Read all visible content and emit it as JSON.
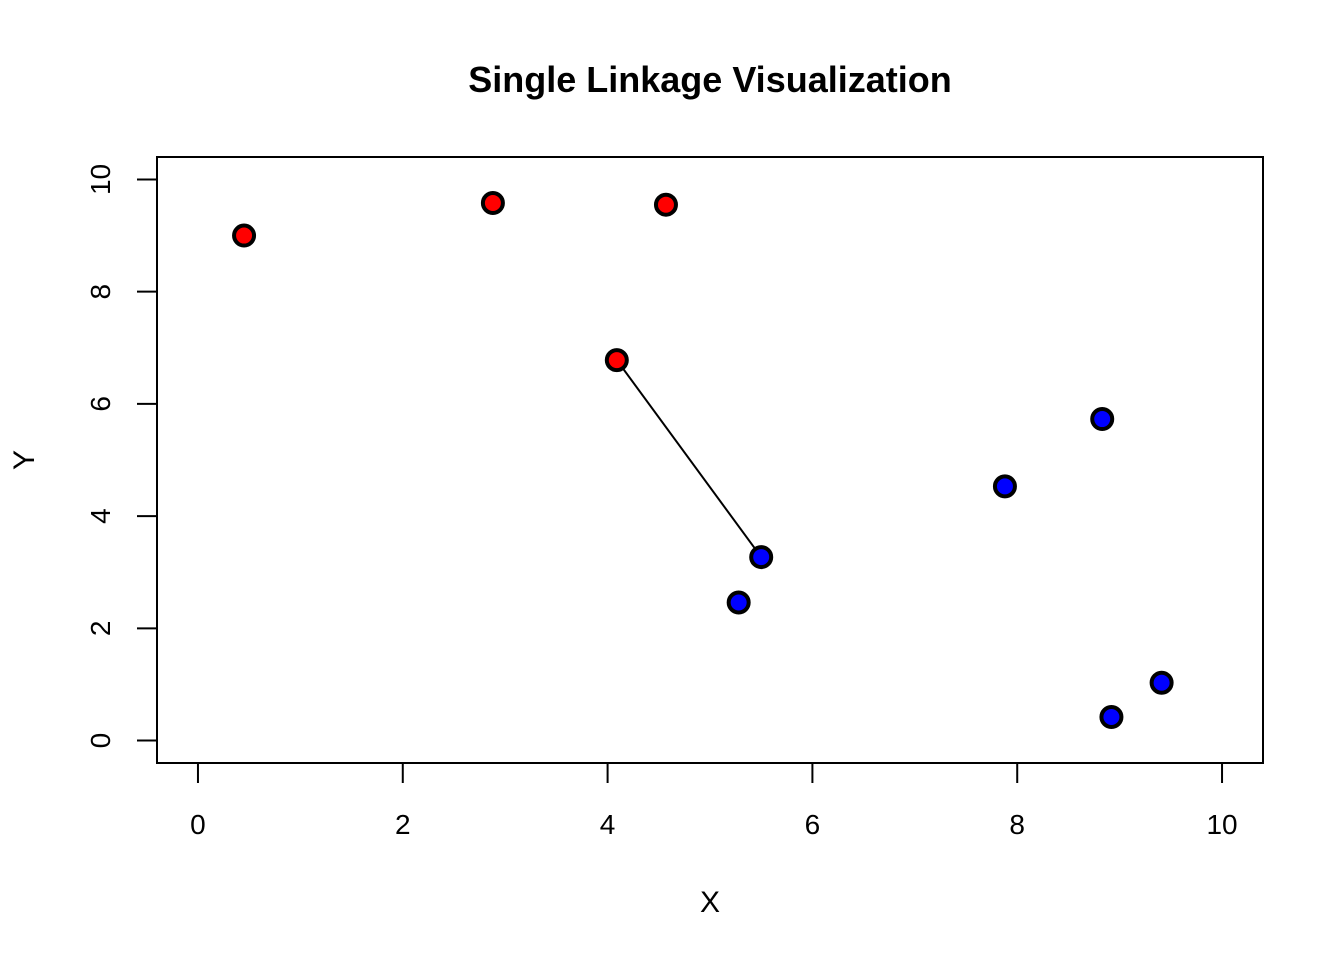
{
  "chart_data": {
    "type": "scatter",
    "title": "Single Linkage Visualization",
    "xlabel": "X",
    "ylabel": "Y",
    "xlim": [
      -0.4,
      10.4
    ],
    "ylim": [
      -0.4,
      10.4
    ],
    "xticks": [
      0,
      2,
      4,
      6,
      8,
      10
    ],
    "yticks": [
      0,
      2,
      4,
      6,
      8,
      10
    ],
    "grid": false,
    "series": [
      {
        "color": "#ff0000",
        "points": [
          {
            "x": 0.45,
            "y": 9.0
          },
          {
            "x": 2.88,
            "y": 9.58
          },
          {
            "x": 4.57,
            "y": 9.55
          },
          {
            "x": 4.09,
            "y": 6.78
          }
        ]
      },
      {
        "color": "#0000ff",
        "points": [
          {
            "x": 5.5,
            "y": 3.27
          },
          {
            "x": 5.28,
            "y": 2.46
          },
          {
            "x": 7.88,
            "y": 4.53
          },
          {
            "x": 8.83,
            "y": 5.73
          },
          {
            "x": 9.41,
            "y": 1.03
          },
          {
            "x": 8.92,
            "y": 0.42
          }
        ]
      }
    ],
    "segments": [
      {
        "x1": 4.09,
        "y1": 6.78,
        "x2": 5.5,
        "y2": 3.27
      }
    ]
  }
}
